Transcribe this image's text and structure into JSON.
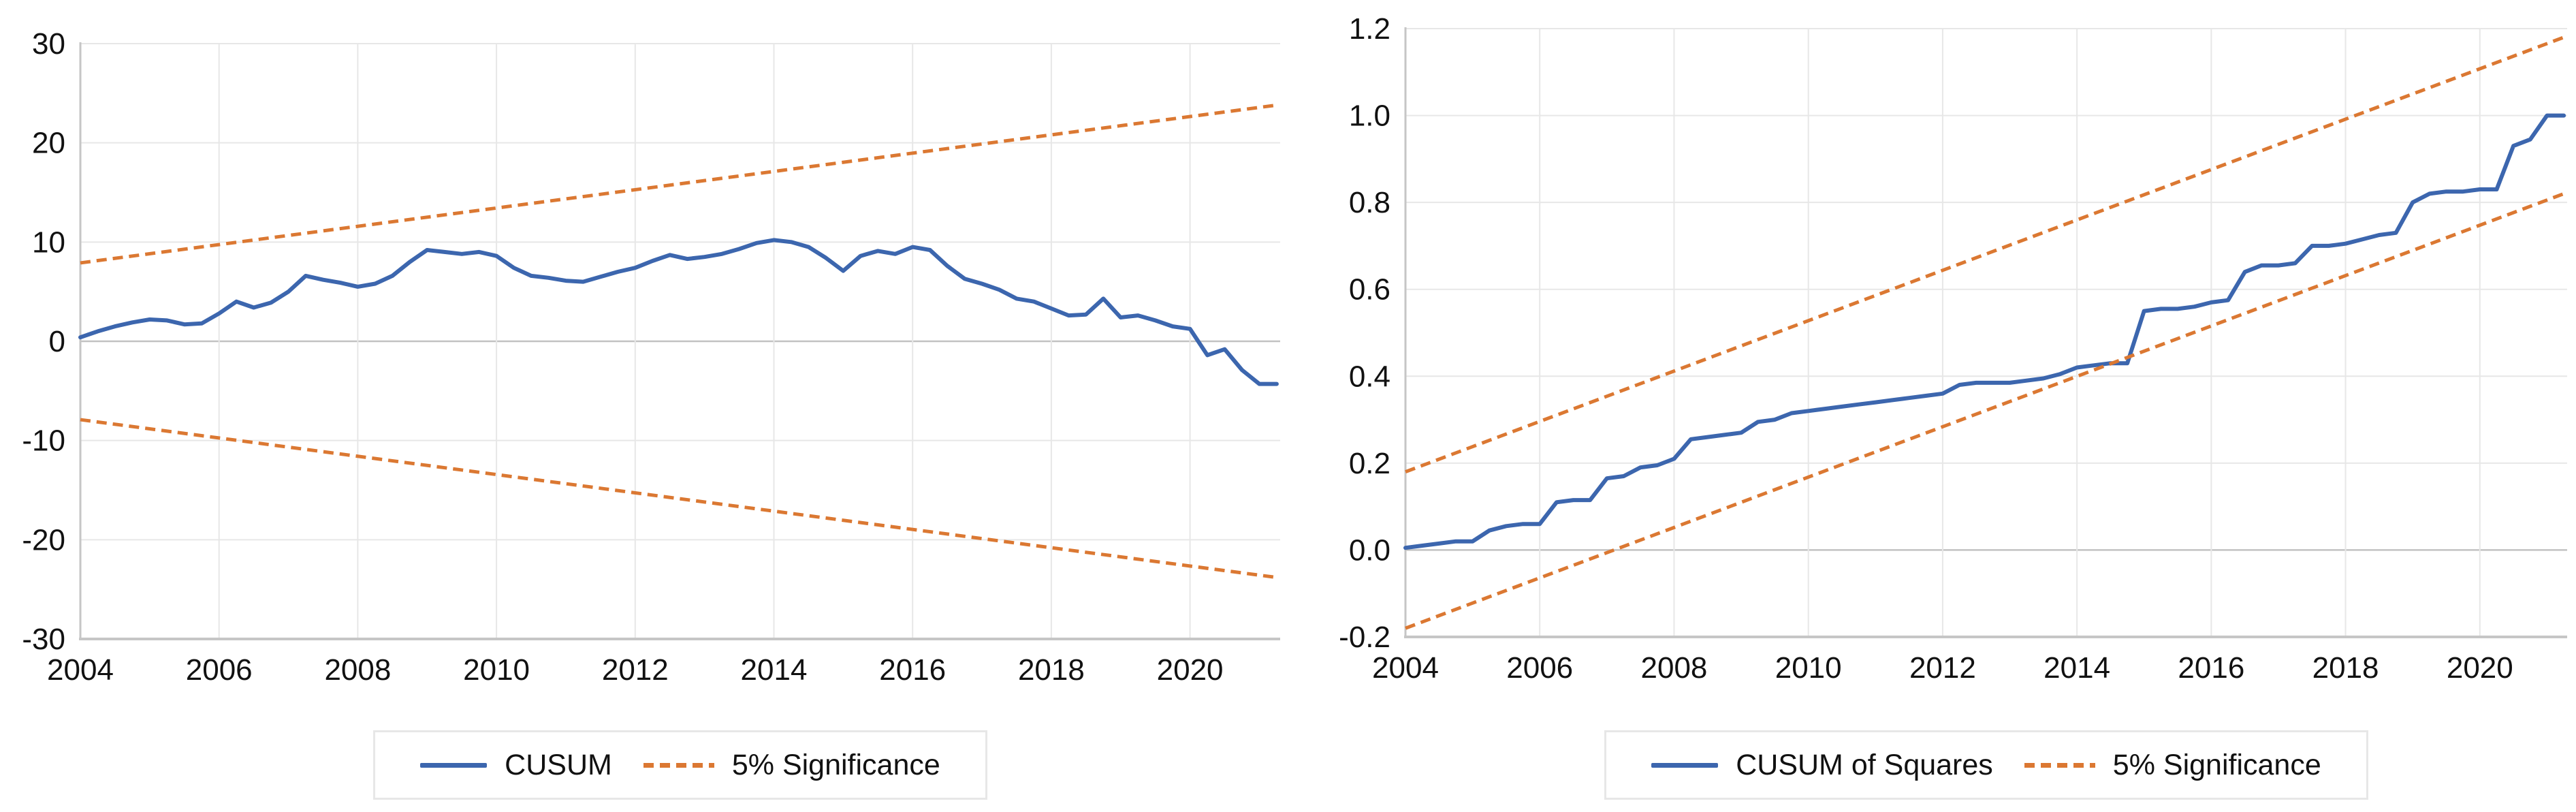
{
  "figure": {
    "background": "#ffffff",
    "grid_color": "#e7e7e7",
    "zero_line_color": "#c2c2c2",
    "axis_line_color": "#c6c6c6",
    "text_color": "#111111"
  },
  "chart_data": [
    {
      "id": "cusum",
      "type": "line",
      "title": "",
      "xlabel": "",
      "ylabel": "",
      "grid": true,
      "legend_position": "bottom",
      "x_axis": {
        "min": 2004,
        "max": 2021.3,
        "tick_years": [
          2004,
          2006,
          2008,
          2010,
          2012,
          2014,
          2016,
          2018,
          2020
        ],
        "tick_labels": [
          "2004",
          "2006",
          "2008",
          "2010",
          "2012",
          "2014",
          "2016",
          "2018",
          "2020"
        ]
      },
      "y_axis": {
        "min": -30,
        "max": 30,
        "tick_values": [
          30,
          20,
          10,
          0,
          -10,
          -20,
          -30
        ],
        "tick_labels": [
          "30",
          "20",
          "10",
          "0",
          "-10",
          "-20",
          "-30"
        ]
      },
      "series": [
        {
          "name": "CUSUM",
          "color": "#3c66ae",
          "line_style": "solid",
          "x_start": 2004.0,
          "x_step": 0.25,
          "values": [
            0.4,
            1.0,
            1.5,
            1.9,
            2.2,
            2.1,
            1.7,
            1.8,
            2.8,
            4.0,
            3.4,
            3.9,
            5.0,
            6.6,
            6.2,
            5.9,
            5.5,
            5.8,
            6.6,
            8.0,
            9.2,
            9.0,
            8.8,
            9.0,
            8.6,
            7.4,
            6.6,
            6.4,
            6.1,
            6.0,
            6.5,
            7.0,
            7.4,
            8.1,
            8.7,
            8.3,
            8.5,
            8.8,
            9.3,
            9.9,
            10.2,
            10.0,
            9.5,
            8.4,
            7.1,
            8.6,
            9.1,
            8.8,
            9.5,
            9.2,
            7.6,
            6.3,
            5.8,
            5.2,
            4.3,
            4.0,
            3.3,
            2.6,
            2.7,
            4.3,
            2.4,
            2.6,
            2.1,
            1.5,
            1.25,
            -1.4,
            -0.8,
            -2.9,
            -4.3,
            -4.3
          ]
        },
        {
          "name": "5% Significance",
          "color": "#db7832",
          "line_style": "dashed",
          "lines": [
            {
              "x": [
                2004.0,
                2021.25
              ],
              "y": [
                7.9,
                23.8
              ]
            },
            {
              "x": [
                2004.0,
                2021.25
              ],
              "y": [
                -7.9,
                -23.8
              ]
            }
          ]
        }
      ],
      "legend": [
        {
          "label": "CUSUM",
          "swatch": "solid-line",
          "color": "#3c66ae"
        },
        {
          "label": "5% Significance",
          "swatch": "dashed-line",
          "color": "#db7832"
        }
      ]
    },
    {
      "id": "cusum-of-squares",
      "type": "line",
      "title": "",
      "xlabel": "",
      "ylabel": "",
      "grid": true,
      "legend_position": "bottom",
      "x_axis": {
        "min": 2004,
        "max": 2021.3,
        "tick_years": [
          2004,
          2006,
          2008,
          2010,
          2012,
          2014,
          2016,
          2018,
          2020
        ],
        "tick_labels": [
          "2004",
          "2006",
          "2008",
          "2010",
          "2012",
          "2014",
          "2016",
          "2018",
          "2020"
        ]
      },
      "y_axis": {
        "min": -0.2,
        "max": 1.2,
        "tick_values": [
          1.2,
          1.0,
          0.8,
          0.6,
          0.4,
          0.2,
          0.0,
          -0.2
        ],
        "tick_labels": [
          "1.2",
          "1.0",
          "0.8",
          "0.6",
          "0.4",
          "0.2",
          "0.0",
          "-0.2"
        ]
      },
      "series": [
        {
          "name": "CUSUM of Squares",
          "color": "#3c66ae",
          "line_style": "solid",
          "x_start": 2004.0,
          "x_step": 0.25,
          "values": [
            0.005,
            0.01,
            0.015,
            0.02,
            0.02,
            0.045,
            0.055,
            0.06,
            0.06,
            0.11,
            0.115,
            0.115,
            0.165,
            0.17,
            0.19,
            0.195,
            0.21,
            0.255,
            0.26,
            0.265,
            0.27,
            0.295,
            0.3,
            0.315,
            0.32,
            0.325,
            0.33,
            0.335,
            0.34,
            0.345,
            0.35,
            0.355,
            0.36,
            0.38,
            0.385,
            0.385,
            0.385,
            0.39,
            0.395,
            0.405,
            0.42,
            0.425,
            0.43,
            0.43,
            0.55,
            0.555,
            0.555,
            0.56,
            0.57,
            0.575,
            0.64,
            0.655,
            0.655,
            0.66,
            0.7,
            0.7,
            0.705,
            0.715,
            0.725,
            0.73,
            0.8,
            0.82,
            0.825,
            0.825,
            0.83,
            0.83,
            0.93,
            0.945,
            1.0,
            1.0
          ]
        },
        {
          "name": "5% Significance",
          "color": "#db7832",
          "line_style": "dashed",
          "lines": [
            {
              "x": [
                2004.0,
                2021.25
              ],
              "y": [
                0.18,
                1.18
              ]
            },
            {
              "x": [
                2004.0,
                2021.25
              ],
              "y": [
                -0.18,
                0.82
              ]
            }
          ]
        }
      ],
      "legend": [
        {
          "label": "CUSUM of Squares",
          "swatch": "solid-line",
          "color": "#3c66ae"
        },
        {
          "label": "5% Significance",
          "swatch": "dashed-line",
          "color": "#db7832"
        }
      ]
    }
  ]
}
